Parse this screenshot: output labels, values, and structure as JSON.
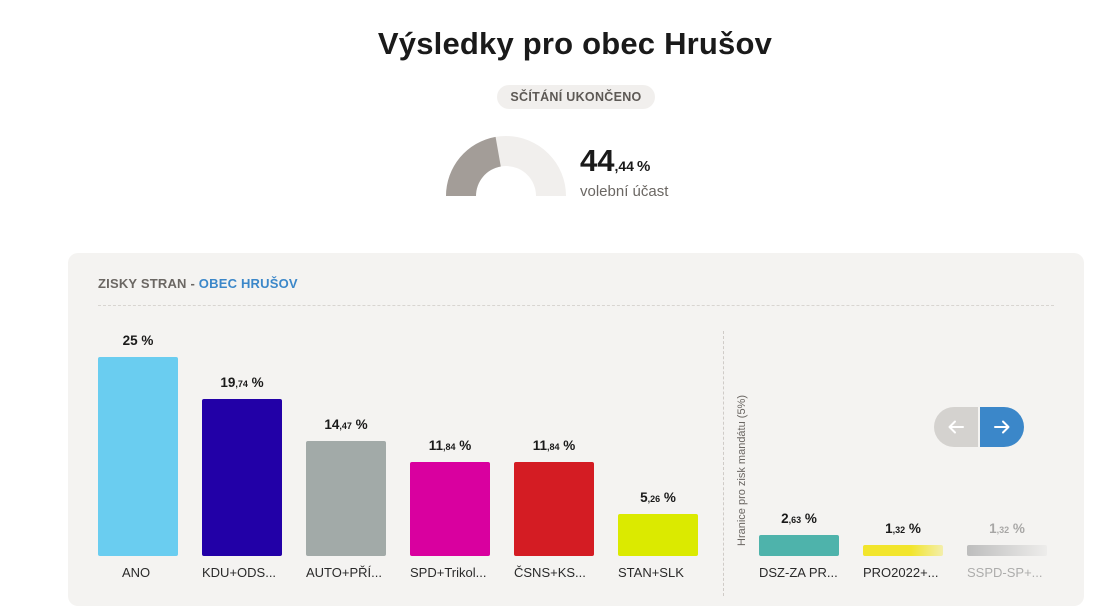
{
  "page": {
    "title": "Výsledky pro obec Hrušov",
    "status": "SČÍTÁNÍ UKONČENO",
    "turnout": {
      "integer": "44",
      "decimal": ",44",
      "percent": "%",
      "label": "volební účast",
      "value": 44.44
    }
  },
  "panel": {
    "header_prefix": "ZISKY STRAN - ",
    "header_place": "OBEC HRUŠOV",
    "threshold_label": "Hranice pro zisk mandátu (5%)"
  },
  "colors": {
    "accent": "#3b87c9",
    "gauge_fill": "#a39d98",
    "gauge_track": "#f1efed"
  },
  "icons": {
    "prev": "arrow-left-icon",
    "next": "arrow-right-icon"
  },
  "chart_data": {
    "type": "bar",
    "categories": [
      "ANO",
      "KDU+ODS...",
      "AUTO+PŘÍ...",
      "SPD+Trikol...",
      "ČSNS+KS...",
      "STAN+SLK",
      "DSZ-ZA PR...",
      "PRO2022+...",
      "SSPD-SP+..."
    ],
    "values": [
      25,
      19.74,
      14.47,
      11.84,
      11.84,
      5.26,
      2.63,
      1.32,
      1.32
    ],
    "value_int": [
      "25",
      "19",
      "14",
      "11",
      "11",
      "5",
      "2",
      "1",
      "1"
    ],
    "value_dec": [
      "",
      ",74",
      ",47",
      ",84",
      ",84",
      ",26",
      ",63",
      ",32",
      ",32"
    ],
    "colors": [
      "#6acdf0",
      "#2200a7",
      "#a2aaa8",
      "#d9009f",
      "#d41c23",
      "#dbea00",
      "#4eb3ab",
      "#f2e52c",
      "#9c9c9c"
    ],
    "threshold": 5,
    "ylim": [
      0,
      25
    ]
  }
}
